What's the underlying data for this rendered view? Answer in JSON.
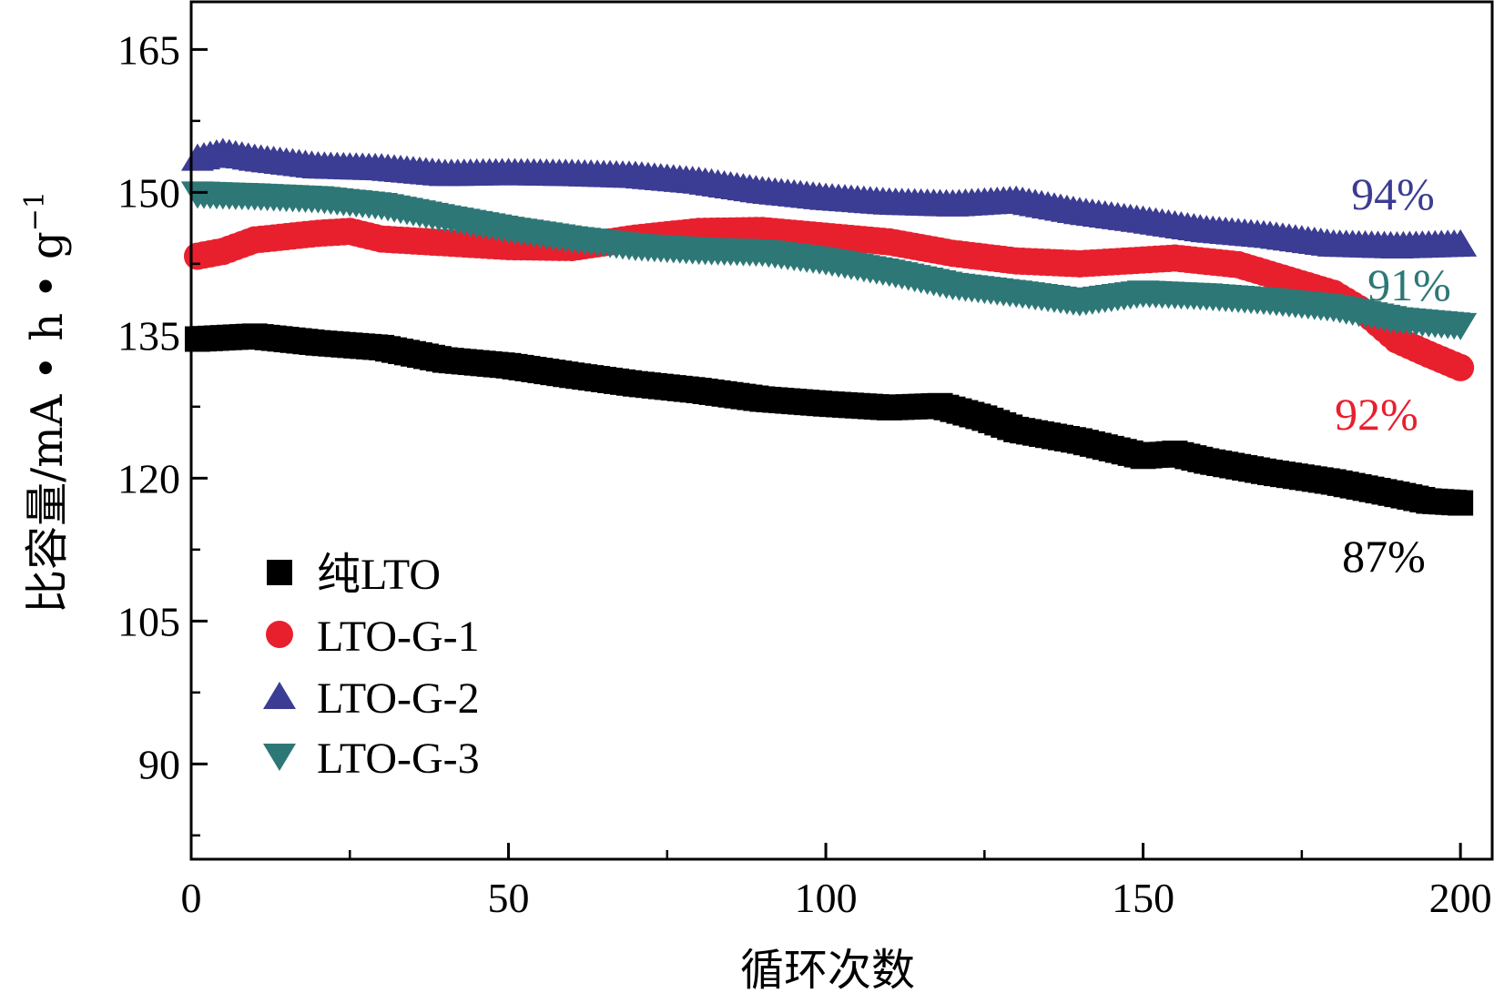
{
  "chart_data": {
    "type": "scatter",
    "xlabel": "循环次数",
    "ylabel": "比容量/mA·h·g",
    "ylabel_parts": {
      "main": "比容量/mA • h • g",
      "superscript": "−1"
    },
    "xlim": [
      0,
      205
    ],
    "ylim": [
      80,
      170
    ],
    "xticks": [
      0,
      50,
      100,
      150,
      200
    ],
    "yticks": [
      90,
      105,
      120,
      135,
      150,
      165
    ],
    "legend_position": "bottom-left",
    "grid": false,
    "series": [
      {
        "name": "纯LTO",
        "marker": "square",
        "color": "#000000",
        "anchors": [
          [
            1,
            134.6
          ],
          [
            10,
            134.9
          ],
          [
            20,
            134.2
          ],
          [
            30,
            133.7
          ],
          [
            40,
            132.4
          ],
          [
            50,
            131.8
          ],
          [
            60,
            130.8
          ],
          [
            70,
            129.9
          ],
          [
            80,
            129.2
          ],
          [
            90,
            128.3
          ],
          [
            100,
            127.8
          ],
          [
            110,
            127.4
          ],
          [
            118,
            127.6
          ],
          [
            125,
            126.3
          ],
          [
            130,
            125.1
          ],
          [
            140,
            123.9
          ],
          [
            150,
            122.3
          ],
          [
            155,
            122.6
          ],
          [
            160,
            121.8
          ],
          [
            170,
            120.6
          ],
          [
            180,
            119.6
          ],
          [
            190,
            118.3
          ],
          [
            195,
            117.6
          ],
          [
            200,
            117.4
          ]
        ],
        "end_label": "87%",
        "label_color": "#000000"
      },
      {
        "name": "LTO-G-1",
        "marker": "circle",
        "color": "#e8202e",
        "anchors": [
          [
            1,
            143.3
          ],
          [
            5,
            143.8
          ],
          [
            10,
            145.0
          ],
          [
            20,
            145.7
          ],
          [
            25,
            145.9
          ],
          [
            30,
            145.1
          ],
          [
            40,
            144.7
          ],
          [
            50,
            144.3
          ],
          [
            60,
            144.2
          ],
          [
            70,
            145.2
          ],
          [
            80,
            145.9
          ],
          [
            90,
            146.0
          ],
          [
            100,
            145.4
          ],
          [
            110,
            144.8
          ],
          [
            120,
            143.6
          ],
          [
            130,
            142.8
          ],
          [
            140,
            142.5
          ],
          [
            150,
            142.9
          ],
          [
            155,
            143.1
          ],
          [
            165,
            142.4
          ],
          [
            170,
            141.4
          ],
          [
            180,
            139.4
          ],
          [
            185,
            137.4
          ],
          [
            190,
            134.5
          ],
          [
            195,
            133.0
          ],
          [
            200,
            131.6
          ]
        ],
        "end_label": "92%",
        "label_color": "#e8202e"
      },
      {
        "name": "LTO-G-2",
        "marker": "triangle-up",
        "color": "#3b3c93",
        "anchors": [
          [
            1,
            153.6
          ],
          [
            5,
            154.2
          ],
          [
            10,
            153.6
          ],
          [
            20,
            152.8
          ],
          [
            30,
            152.6
          ],
          [
            40,
            152.0
          ],
          [
            50,
            152.1
          ],
          [
            60,
            152.0
          ],
          [
            70,
            151.8
          ],
          [
            80,
            151.2
          ],
          [
            90,
            150.2
          ],
          [
            100,
            149.5
          ],
          [
            110,
            149.0
          ],
          [
            120,
            148.8
          ],
          [
            130,
            149.2
          ],
          [
            140,
            148.0
          ],
          [
            150,
            147.1
          ],
          [
            160,
            146.1
          ],
          [
            170,
            145.5
          ],
          [
            180,
            144.6
          ],
          [
            190,
            144.4
          ],
          [
            200,
            144.6
          ]
        ],
        "end_label": "94%",
        "label_color": "#3b3c93"
      },
      {
        "name": "LTO-G-3",
        "marker": "triangle-down",
        "color": "#2e7777",
        "anchors": [
          [
            1,
            149.8
          ],
          [
            10,
            149.6
          ],
          [
            20,
            149.3
          ],
          [
            30,
            148.6
          ],
          [
            40,
            147.3
          ],
          [
            50,
            146.1
          ],
          [
            60,
            145.1
          ],
          [
            70,
            144.3
          ],
          [
            80,
            143.9
          ],
          [
            90,
            143.7
          ],
          [
            100,
            142.8
          ],
          [
            110,
            141.6
          ],
          [
            120,
            140.2
          ],
          [
            130,
            139.4
          ],
          [
            140,
            138.5
          ],
          [
            150,
            139.4
          ],
          [
            160,
            139.1
          ],
          [
            170,
            138.6
          ],
          [
            180,
            137.9
          ],
          [
            190,
            136.6
          ],
          [
            200,
            136.0
          ]
        ],
        "end_label": "91%",
        "label_color": "#2e7777"
      }
    ]
  }
}
